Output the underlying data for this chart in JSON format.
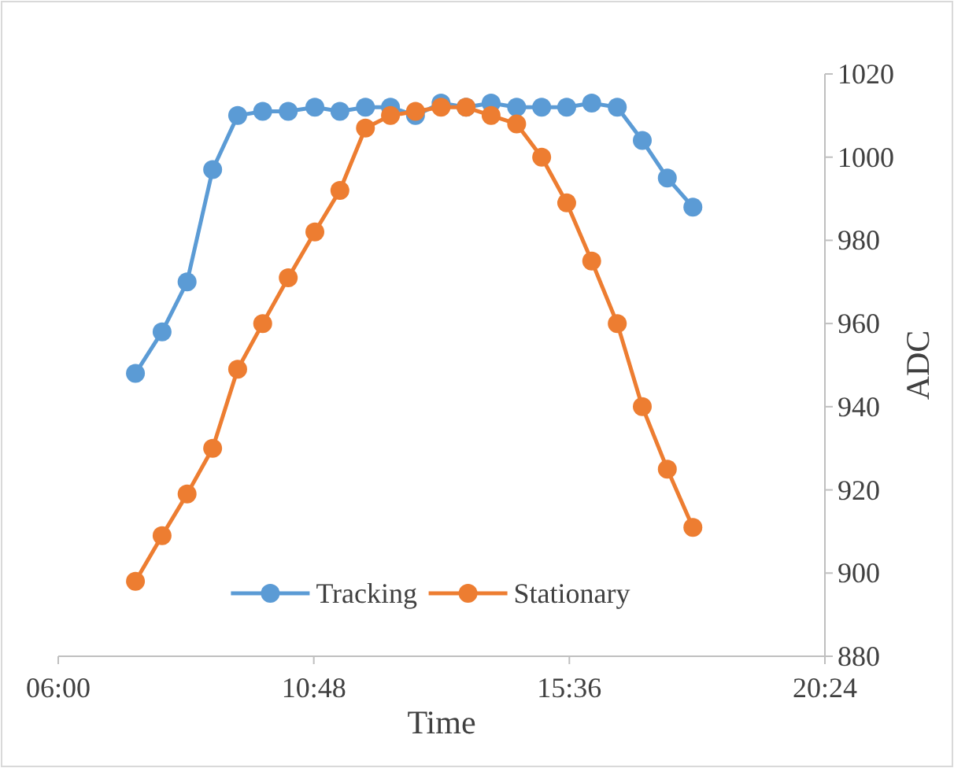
{
  "chart_data": {
    "type": "line",
    "xlabel": "Time",
    "ylabel": "ADC",
    "x": [
      7.45,
      7.95,
      8.42,
      8.9,
      9.37,
      9.84,
      10.32,
      10.82,
      11.29,
      11.77,
      12.24,
      12.71,
      13.19,
      13.66,
      14.13,
      14.61,
      15.08,
      15.55,
      16.02,
      16.5,
      16.97,
      17.44,
      17.92
    ],
    "series": [
      {
        "name": "Tracking",
        "color": "#5b9bd5",
        "values": [
          948,
          958,
          970,
          997,
          1010,
          1011,
          1011,
          1012,
          1011,
          1012,
          1012,
          1010,
          1013,
          1012,
          1013,
          1012,
          1012,
          1012,
          1013,
          1012,
          1004,
          995,
          988
        ]
      },
      {
        "name": "Stationary",
        "color": "#ed7d31",
        "values": [
          898,
          909,
          919,
          930,
          949,
          960,
          971,
          982,
          992,
          1007,
          1010,
          1011,
          1012,
          1012,
          1010,
          1008,
          1000,
          989,
          975,
          960,
          940,
          925,
          911
        ]
      }
    ],
    "xlim": [
      6,
      20.4
    ],
    "xticks": [
      {
        "value": 6,
        "label": "06:00"
      },
      {
        "value": 10.8,
        "label": "10:48"
      },
      {
        "value": 15.6,
        "label": "15:36"
      },
      {
        "value": 20.4,
        "label": "20:24"
      }
    ],
    "ylim": [
      880,
      1020
    ],
    "yticks": [
      880,
      900,
      920,
      940,
      960,
      980,
      1000,
      1020
    ],
    "grid": false,
    "legend": "bottom",
    "marker": "circle",
    "line_style": "solid"
  }
}
